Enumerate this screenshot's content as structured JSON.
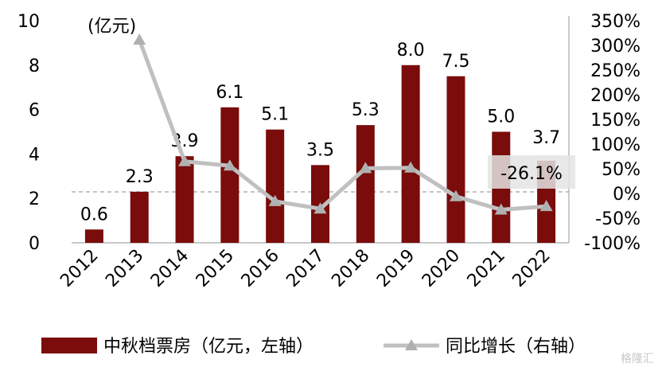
{
  "chart_data": {
    "type": "bar",
    "categories": [
      "2012",
      "2013",
      "2014",
      "2015",
      "2016",
      "2017",
      "2018",
      "2019",
      "2020",
      "2021",
      "2022"
    ],
    "series": [
      {
        "name": "中秋档票房（亿元，左轴）",
        "type": "bar",
        "axis": "left",
        "values": [
          0.6,
          2.3,
          3.9,
          6.1,
          5.1,
          3.5,
          5.3,
          8.0,
          7.5,
          5.0,
          3.7
        ],
        "labels": [
          "0.6",
          "2.3",
          "3.9",
          "6.1",
          "5.1",
          "3.5",
          "5.3",
          "8.0",
          "7.5",
          "5.0",
          "3.7"
        ],
        "color": "#7a0c0c"
      },
      {
        "name": "同比增长（右轴）",
        "type": "line",
        "axis": "right",
        "values": [
          null,
          311,
          65,
          56,
          -16,
          -31,
          51,
          52,
          -6,
          -33,
          -26.1
        ],
        "color": "#c0c0c0"
      }
    ],
    "y_left": {
      "unit_label": "(亿元)",
      "ylim": [
        0,
        10
      ],
      "ticks": [
        "0",
        "2",
        "4",
        "6",
        "8",
        "10"
      ]
    },
    "y_right": {
      "ylim": [
        -100,
        350
      ],
      "ticks": [
        "-100%",
        "-50%",
        "0%",
        "50%",
        "100%",
        "150%",
        "200%",
        "250%",
        "300%",
        "350%"
      ]
    },
    "annotation": {
      "text": "-26.1%",
      "category": "2022"
    },
    "grid": false,
    "legend_position": "bottom"
  },
  "watermark": "格隆汇"
}
